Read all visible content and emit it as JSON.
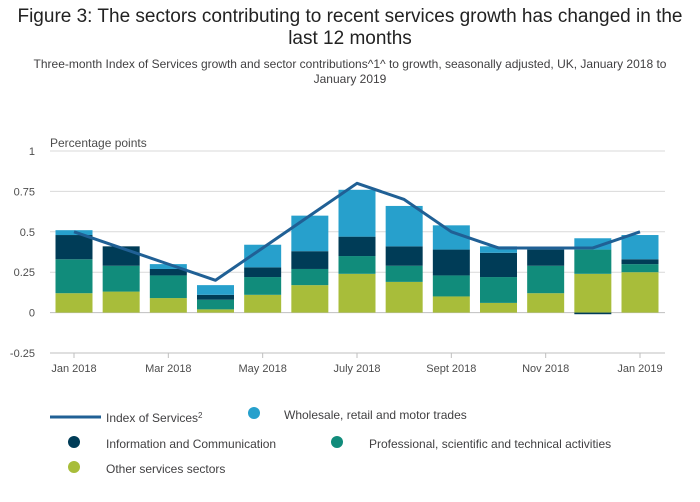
{
  "title": "Figure 3: The sectors contributing to recent services growth has changed in the last 12 months",
  "subtitle": "Three-month Index of Services growth and sector contributions^1^ to growth, seasonally adjusted, UK, January 2018 to January 2019",
  "chart_data": {
    "type": "bar",
    "stacked": true,
    "title": "Figure 3: The sectors contributing to recent services growth has changed in the last 12 months",
    "subtitle": "Three-month Index of Services growth and sector contributions^1^ to growth, seasonally adjusted, UK, January 2018 to January 2019",
    "ylabel": "Percentage points",
    "xlabel": "",
    "ylim": [
      -0.25,
      1
    ],
    "yticks": [
      -0.25,
      0,
      0.25,
      0.5,
      0.75,
      1
    ],
    "ytick_labels": [
      "-0.25",
      "0",
      "0.25",
      "0.5",
      "0.75",
      "1"
    ],
    "grid": true,
    "categories": [
      "Jan 2018",
      "Feb 2018",
      "Mar 2018",
      "Apr 2018",
      "May 2018",
      "Jun 2018",
      "July 2018",
      "Aug 2018",
      "Sept 2018",
      "Oct 2018",
      "Nov 2018",
      "Dec 2018",
      "Jan 2019"
    ],
    "x_tick_labels": [
      "Jan 2018",
      "",
      "Mar 2018",
      "",
      "May 2018",
      "",
      "July 2018",
      "",
      "Sept 2018",
      "",
      "Nov 2018",
      "",
      "Jan 2019"
    ],
    "series": [
      {
        "name": "Other services sectors",
        "kind": "bar",
        "color": "#a8bd3a",
        "values": [
          0.12,
          0.13,
          0.09,
          0.02,
          0.11,
          0.17,
          0.24,
          0.19,
          0.1,
          0.06,
          0.12,
          0.24,
          0.25
        ]
      },
      {
        "name": "Professional, scientific and technical activities",
        "kind": "bar",
        "color": "#118c7b",
        "values": [
          0.21,
          0.16,
          0.14,
          0.06,
          0.11,
          0.1,
          0.11,
          0.1,
          0.13,
          0.16,
          0.17,
          0.15,
          0.05
        ]
      },
      {
        "name": "Information and Communication",
        "kind": "bar",
        "color": "#003c57",
        "values": [
          0.15,
          0.12,
          0.04,
          0.03,
          0.06,
          0.11,
          0.12,
          0.12,
          0.16,
          0.15,
          0.1,
          -0.01,
          0.03
        ]
      },
      {
        "name": "Wholesale, retail and motor trades",
        "kind": "bar",
        "color": "#27a0cc",
        "values": [
          0.03,
          0.0,
          0.03,
          0.06,
          0.14,
          0.22,
          0.29,
          0.25,
          0.15,
          0.04,
          0.01,
          0.07,
          0.15
        ]
      },
      {
        "name": "Index of Services",
        "name_sup": "2",
        "kind": "line",
        "color": "#206095",
        "values": [
          0.5,
          0.4,
          0.3,
          0.2,
          0.4,
          0.6,
          0.8,
          0.7,
          0.5,
          0.4,
          0.4,
          0.4,
          0.5
        ]
      }
    ],
    "legend": {
      "placement": "bottom",
      "items": [
        {
          "label": "Index of Services",
          "sup": "2",
          "symbol": "line",
          "color": "#206095"
        },
        {
          "label": "Wholesale, retail and motor trades",
          "symbol": "circle",
          "color": "#27a0cc"
        },
        {
          "label": "Information and Communication",
          "symbol": "circle",
          "color": "#003c57"
        },
        {
          "label": "Professional, scientific and technical activities",
          "symbol": "circle",
          "color": "#118c7b"
        },
        {
          "label": "Other services sectors",
          "symbol": "circle",
          "color": "#a8bd3a"
        }
      ]
    }
  },
  "colors": {
    "grid": "#d9d9d9",
    "zero_line": "#bfbfbf",
    "axis": "#bfbfbf"
  }
}
